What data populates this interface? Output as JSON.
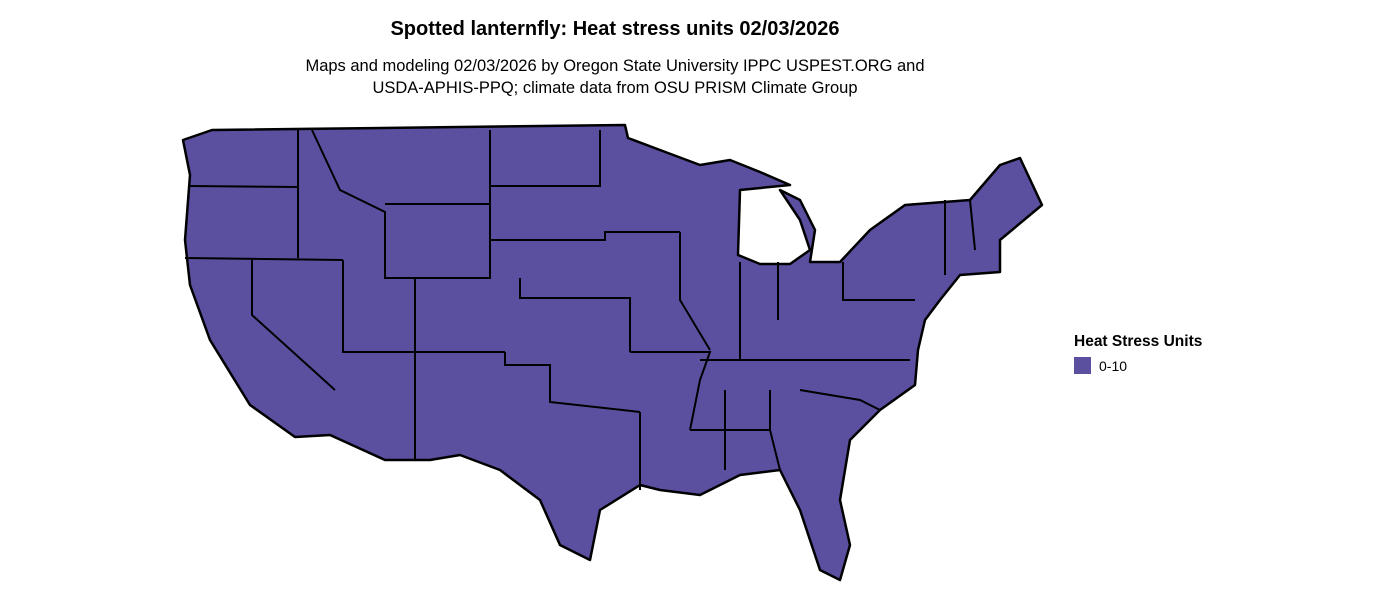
{
  "title": "Spotted lanternfly: Heat stress units 02/03/2026",
  "subtitle_line1": "Maps and modeling 02/03/2026 by Oregon State University IPPC USPEST.ORG and",
  "subtitle_line2": "USDA-APHIS-PPQ; climate data from OSU PRISM Climate Group",
  "legend": {
    "title": "Heat Stress Units",
    "items": [
      {
        "label": "0-10",
        "color": "#5b4fa0"
      }
    ]
  },
  "map": {
    "region": "Contiguous United States",
    "fill_color": "#5b4fa0",
    "border_color": "#000000"
  }
}
